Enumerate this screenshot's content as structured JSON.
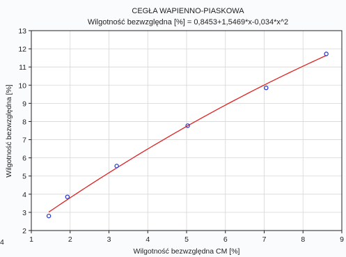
{
  "chart_data": {
    "type": "scatter",
    "title": "CEGŁA WAPIENNO-PIASKOWA",
    "subtitle": "Wilgotność bezwzględna [%] = 0,8453+1,5469*x-0,034*x^2",
    "xlabel": "Wilgotność bezwzględna CM [%]",
    "ylabel": "Wilgotność bezwzględna [%]",
    "xlim": [
      1,
      9
    ],
    "ylim": [
      2,
      13
    ],
    "x_ticks": [
      1,
      2,
      3,
      4,
      5,
      6,
      7,
      8,
      9
    ],
    "y_ticks": [
      2,
      3,
      4,
      5,
      6,
      7,
      8,
      9,
      10,
      11,
      12,
      13
    ],
    "left_edge_label": "4",
    "grid": true,
    "points": [
      {
        "x": 1.45,
        "y": 2.8
      },
      {
        "x": 1.93,
        "y": 3.85
      },
      {
        "x": 3.2,
        "y": 5.55
      },
      {
        "x": 5.03,
        "y": 7.77
      },
      {
        "x": 7.05,
        "y": 9.85
      },
      {
        "x": 8.6,
        "y": 11.72
      }
    ],
    "fit": {
      "type": "quadratic",
      "coefficients": [
        0.8453,
        1.5469,
        -0.034
      ],
      "x_range": [
        1.45,
        8.6
      ]
    },
    "colors": {
      "points": "#2b3fd1",
      "fit_line": "#e02020",
      "grid": "#d6d6d6",
      "axis": "#222222",
      "plot_bg": "#ffffff"
    }
  }
}
